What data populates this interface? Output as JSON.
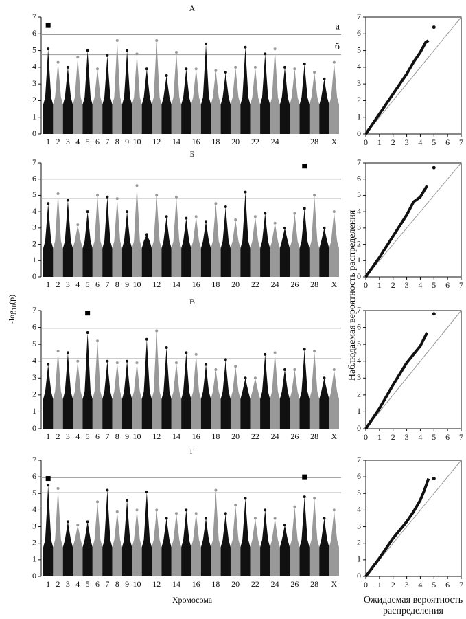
{
  "labels": {
    "y_label": {
      "main": "-log",
      "sub": "10",
      "tail": "(p)"
    },
    "x_label": "Хромосома",
    "qq_y_label": "Наблюдаемая вероятность распределения",
    "qq_x_label": [
      "Ожидаемая вероятность",
      "распределения"
    ]
  },
  "chart_data": [
    {
      "type": "manhattan",
      "title": "А",
      "colors": [
        "#111111",
        "#999999"
      ],
      "categories": [
        "1",
        "2",
        "3",
        "4",
        "5",
        "6",
        "7",
        "8",
        "9",
        "10",
        null,
        "12",
        null,
        "14",
        null,
        "16",
        null,
        "18",
        null,
        "20",
        null,
        "22",
        null,
        "24",
        null,
        null,
        null,
        "28",
        null,
        "X"
      ],
      "values": [
        5.1,
        4.3,
        4.0,
        4.6,
        5.0,
        3.9,
        4.7,
        5.6,
        5.0,
        4.8,
        3.9,
        5.6,
        3.5,
        4.9,
        3.9,
        3.9,
        5.4,
        3.8,
        3.7,
        4.0,
        5.2,
        4.0,
        4.8,
        5.1,
        4.0,
        3.9,
        4.2,
        3.7,
        3.3,
        4.3
      ],
      "highlight": [
        {
          "index": 0,
          "value": 6.5
        }
      ],
      "thresholds": [
        {
          "value": 5.95,
          "label": "а"
        },
        {
          "value": 4.75,
          "label": "б"
        }
      ],
      "ylim": [
        0,
        7
      ],
      "yticks": [
        0,
        1,
        2,
        3,
        4,
        5,
        6,
        7
      ]
    },
    {
      "type": "manhattan",
      "title": "Б",
      "colors": [
        "#111111",
        "#999999"
      ],
      "categories": [
        "1",
        "2",
        "3",
        "4",
        "5",
        "6",
        "7",
        "8",
        "9",
        "10",
        null,
        "12",
        null,
        "14",
        null,
        "16",
        null,
        "18",
        null,
        "20",
        null,
        "22",
        null,
        "24",
        null,
        "26",
        null,
        "28",
        null,
        "X"
      ],
      "values": [
        4.5,
        5.1,
        4.7,
        3.2,
        4.0,
        5.0,
        4.9,
        4.8,
        4.0,
        5.6,
        2.6,
        5.0,
        3.7,
        4.9,
        3.6,
        3.7,
        3.4,
        4.5,
        4.3,
        3.5,
        5.2,
        3.7,
        3.9,
        3.3,
        3.0,
        3.9,
        4.2,
        5.0,
        3.0,
        4.0
      ],
      "highlight": [
        {
          "index": 26,
          "value": 6.8
        }
      ],
      "thresholds": [
        {
          "value": 6.0
        },
        {
          "value": 4.8
        }
      ],
      "ylim": [
        0,
        7
      ],
      "yticks": [
        0,
        1,
        2,
        3,
        4,
        5,
        6,
        7
      ]
    },
    {
      "type": "manhattan",
      "title": "В",
      "colors": [
        "#111111",
        "#999999"
      ],
      "categories": [
        "1",
        "2",
        "3",
        "4",
        "5",
        "6",
        "7",
        "8",
        "9",
        "10",
        null,
        "12",
        null,
        "14",
        null,
        "16",
        null,
        "18",
        null,
        "20",
        null,
        "22",
        null,
        "24",
        null,
        "26",
        null,
        "28",
        null,
        "X"
      ],
      "values": [
        3.8,
        4.6,
        4.5,
        4.0,
        5.7,
        5.2,
        4.0,
        3.9,
        4.0,
        3.9,
        5.3,
        5.8,
        4.8,
        3.9,
        4.5,
        4.4,
        3.8,
        3.5,
        4.1,
        3.7,
        3.0,
        3.0,
        4.4,
        4.5,
        3.5,
        3.5,
        4.7,
        4.6,
        3.0,
        3.5
      ],
      "highlight": [
        {
          "index": 4,
          "value": 6.85
        }
      ],
      "thresholds": [
        {
          "value": 5.95
        },
        {
          "value": 4.15
        }
      ],
      "ylim": [
        0,
        7
      ],
      "yticks": [
        0,
        1,
        2,
        3,
        4,
        5,
        6,
        7
      ]
    },
    {
      "type": "manhattan",
      "title": "Г",
      "colors": [
        "#111111",
        "#999999"
      ],
      "categories": [
        "1",
        "2",
        "3",
        "4",
        "5",
        "6",
        "7",
        "8",
        "9",
        "10",
        null,
        "12",
        null,
        "14",
        null,
        "16",
        null,
        "18",
        null,
        "20",
        null,
        "22",
        null,
        "24",
        null,
        "26",
        null,
        "28",
        null,
        "X"
      ],
      "values": [
        5.5,
        5.3,
        3.3,
        3.1,
        3.3,
        4.5,
        5.2,
        3.9,
        4.6,
        4.0,
        5.1,
        4.0,
        3.5,
        3.8,
        4.0,
        3.8,
        3.5,
        5.2,
        3.8,
        4.3,
        4.7,
        3.5,
        4.0,
        3.5,
        3.1,
        4.2,
        4.8,
        4.7,
        3.5,
        4.0
      ],
      "highlight": [
        {
          "index": 0,
          "value": 5.9
        },
        {
          "index": 26,
          "value": 6.0
        }
      ],
      "thresholds": [
        {
          "value": 5.95
        },
        {
          "value": 5.05
        }
      ],
      "ylim": [
        0,
        7
      ],
      "yticks": [
        0,
        1,
        2,
        3,
        4,
        5,
        6,
        7
      ]
    },
    {
      "type": "qq",
      "color": "#111111",
      "x": [
        0,
        1,
        2,
        3,
        3.5,
        4,
        4.4,
        4.6,
        5
      ],
      "y": [
        0,
        1.2,
        2.4,
        3.6,
        4.3,
        4.9,
        5.5,
        5.6,
        6.4
      ],
      "xlim": [
        0,
        7
      ],
      "ylim": [
        0,
        7
      ],
      "xticks": [
        0,
        1,
        2,
        3,
        4,
        5,
        6,
        7
      ],
      "yticks": [
        0,
        1,
        2,
        3,
        4,
        5,
        6,
        7
      ]
    },
    {
      "type": "qq",
      "color": "#111111",
      "x": [
        0,
        1,
        2,
        3,
        3.5,
        4,
        4.5,
        5
      ],
      "y": [
        0,
        1.2,
        2.5,
        3.8,
        4.6,
        4.9,
        5.6,
        6.7
      ],
      "xlim": [
        0,
        7
      ],
      "ylim": [
        0,
        7
      ],
      "xticks": [
        0,
        1,
        2,
        3,
        4,
        5,
        6,
        7
      ],
      "yticks": [
        0,
        1,
        2,
        3,
        4,
        5,
        6,
        7
      ]
    },
    {
      "type": "qq",
      "color": "#111111",
      "x": [
        0,
        1,
        2,
        3,
        3.5,
        4,
        4.5,
        5
      ],
      "y": [
        0,
        1.2,
        2.6,
        3.9,
        4.4,
        4.9,
        5.7,
        6.8
      ],
      "xlim": [
        0,
        7
      ],
      "ylim": [
        0,
        7
      ],
      "xticks": [
        0,
        1,
        2,
        3,
        4,
        5,
        6,
        7
      ],
      "yticks": [
        0,
        1,
        2,
        3,
        4,
        5,
        6,
        7
      ]
    },
    {
      "type": "qq",
      "color": "#111111",
      "x": [
        0,
        1,
        2,
        3,
        3.5,
        4,
        4.3,
        4.6,
        5
      ],
      "y": [
        0,
        1.1,
        2.3,
        3.3,
        3.9,
        4.6,
        5.2,
        5.9,
        5.9
      ],
      "xlim": [
        0,
        7
      ],
      "ylim": [
        0,
        7
      ],
      "xticks": [
        0,
        1,
        2,
        3,
        4,
        5,
        6,
        7
      ],
      "yticks": [
        0,
        1,
        2,
        3,
        4,
        5,
        6,
        7
      ]
    }
  ]
}
